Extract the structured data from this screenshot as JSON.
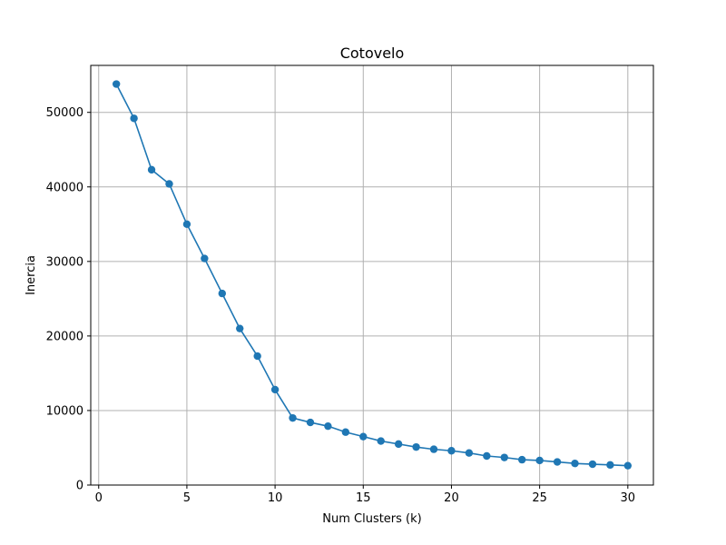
{
  "chart_data": {
    "type": "line",
    "title": "Cotovelo",
    "xlabel": "Num Clusters (k)",
    "ylabel": "Inercia",
    "xlim": [
      -0.45,
      31.45
    ],
    "ylim": [
      0,
      56300
    ],
    "xticks": [
      0,
      5,
      10,
      15,
      20,
      25,
      30
    ],
    "yticks": [
      0,
      10000,
      20000,
      30000,
      40000,
      50000
    ],
    "grid": true,
    "marker": "circle",
    "colors": {
      "series": "#1f77b4",
      "grid": "#b0b0b0",
      "axes": "#000000"
    },
    "series": [
      {
        "x": [
          1,
          2,
          3,
          4,
          5,
          6,
          7,
          8,
          9,
          10,
          11,
          12,
          13,
          14,
          15,
          16,
          17,
          18,
          19,
          20,
          21,
          22,
          23,
          24,
          25,
          26,
          27,
          28,
          29,
          30
        ],
        "values": [
          53800,
          49200,
          42300,
          40400,
          35000,
          30400,
          25700,
          21000,
          17300,
          12800,
          9000,
          8400,
          7900,
          7100,
          6500,
          5900,
          5500,
          5100,
          4800,
          4600,
          4300,
          3900,
          3700,
          3400,
          3300,
          3100,
          2900,
          2800,
          2700,
          2600
        ]
      }
    ]
  }
}
